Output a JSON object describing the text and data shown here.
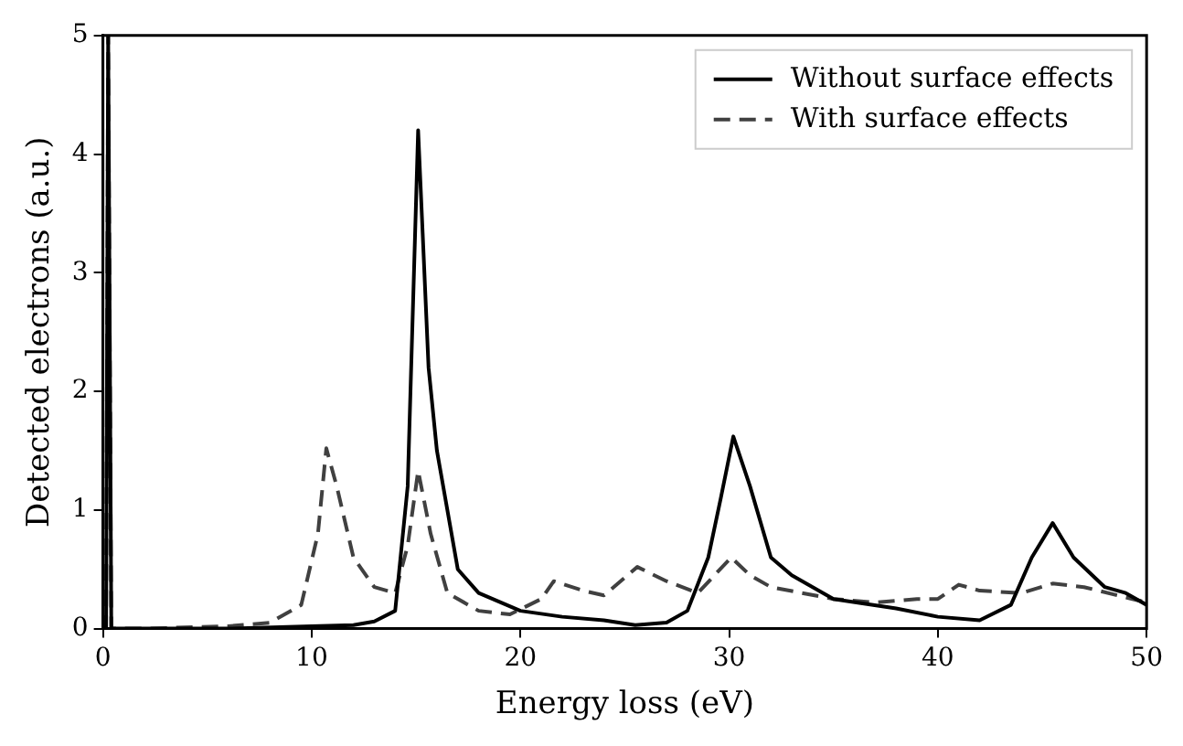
{
  "chart_data": {
    "type": "line",
    "xlabel": "Energy loss (eV)",
    "ylabel": "Detected electrons (a.u.)",
    "xlim": [
      0,
      50
    ],
    "ylim": [
      0,
      5
    ],
    "xticks": [
      0,
      10,
      20,
      30,
      40,
      50
    ],
    "yticks": [
      0,
      1,
      2,
      3,
      4,
      5
    ],
    "grid": false,
    "legend": "top right",
    "marker": "none",
    "series": [
      {
        "name": "Without surface effects",
        "color": "#000000",
        "line_style": "solid",
        "x": [
          0,
          0.15,
          0.25,
          0.4,
          2,
          6,
          10,
          12,
          13,
          14,
          14.6,
          15.1,
          15.6,
          16,
          17,
          18,
          20,
          22,
          24,
          25.5,
          27,
          28,
          29,
          29.6,
          30.2,
          31,
          32,
          33,
          34,
          35,
          38,
          40,
          42,
          43.5,
          44.5,
          45.5,
          46.5,
          48,
          49,
          50
        ],
        "values": [
          0,
          0,
          5,
          0,
          0,
          0,
          0.02,
          0.03,
          0.06,
          0.15,
          1.2,
          4.2,
          2.2,
          1.5,
          0.5,
          0.3,
          0.15,
          0.1,
          0.07,
          0.03,
          0.05,
          0.15,
          0.6,
          1.1,
          1.62,
          1.2,
          0.6,
          0.45,
          0.35,
          0.25,
          0.17,
          0.1,
          0.07,
          0.2,
          0.6,
          0.89,
          0.6,
          0.35,
          0.3,
          0.2
        ]
      },
      {
        "name": "With surface effects",
        "color": "#404040",
        "line_style": "dashed",
        "x": [
          0,
          0.15,
          0.25,
          0.4,
          2,
          6,
          8,
          9.5,
          10.3,
          10.7,
          11.2,
          12,
          13,
          14,
          14.6,
          15.1,
          15.7,
          16.5,
          18,
          19.5,
          21,
          21.6,
          23,
          24,
          25.6,
          27,
          28.5,
          30.1,
          31,
          32,
          35,
          37,
          39,
          40,
          41,
          42,
          44,
          45.5,
          47,
          50
        ],
        "values": [
          0,
          0,
          5,
          0,
          0,
          0.02,
          0.05,
          0.2,
          0.8,
          1.52,
          1.2,
          0.6,
          0.35,
          0.3,
          0.7,
          1.33,
          0.8,
          0.3,
          0.15,
          0.12,
          0.25,
          0.4,
          0.32,
          0.28,
          0.52,
          0.4,
          0.3,
          0.6,
          0.45,
          0.35,
          0.25,
          0.22,
          0.25,
          0.25,
          0.37,
          0.32,
          0.3,
          0.38,
          0.35,
          0.22
        ]
      }
    ]
  }
}
